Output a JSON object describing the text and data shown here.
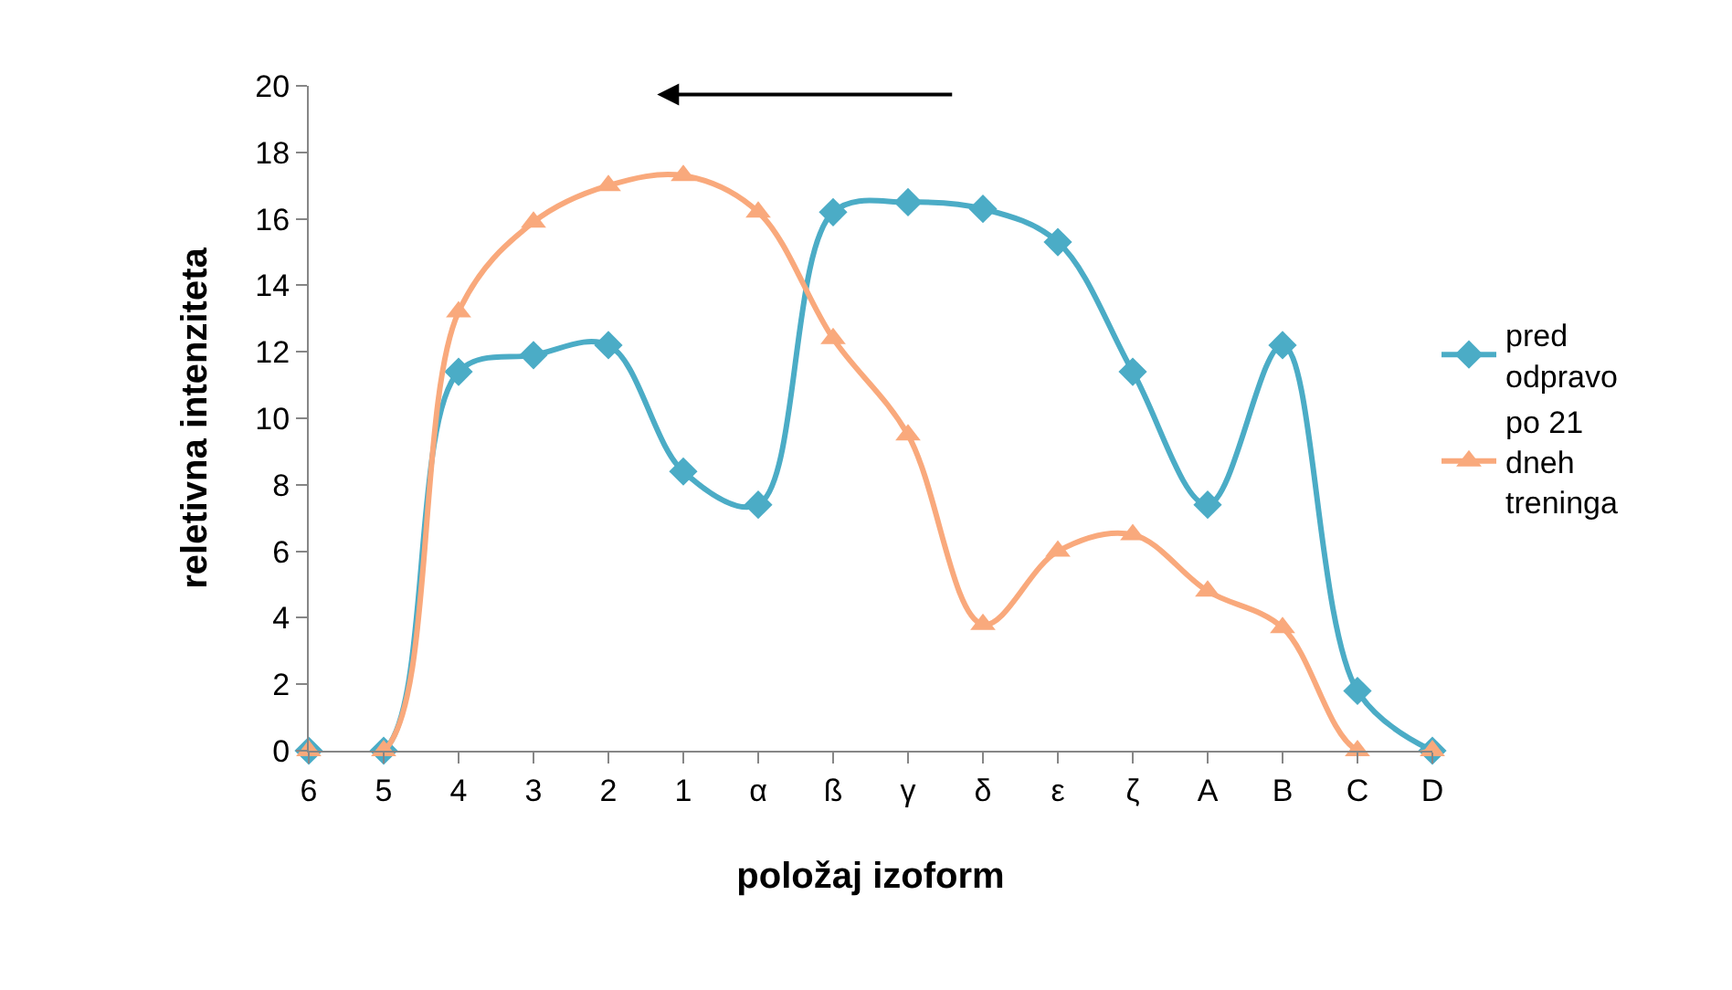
{
  "chart_data": {
    "type": "line",
    "xlabel": "položaj izoform",
    "ylabel": "reletivna intenziteta",
    "categories": [
      "6",
      "5",
      "4",
      "3",
      "2",
      "1",
      "α",
      "ß",
      "γ",
      "δ",
      "ε",
      "ζ",
      "A",
      "B",
      "C",
      "D"
    ],
    "series": [
      {
        "name": "pred odpravo",
        "color": "#4bacc6",
        "marker": "diamond",
        "values": [
          0,
          0,
          11.4,
          11.9,
          12.2,
          8.4,
          7.4,
          16.2,
          16.5,
          16.3,
          15.3,
          11.4,
          7.4,
          12.2,
          1.8,
          0
        ]
      },
      {
        "name": "po 21 dneh treninga",
        "color": "#f9a97c",
        "marker": "triangle",
        "values": [
          0,
          0,
          13.2,
          15.9,
          17.0,
          17.3,
          16.2,
          12.4,
          9.5,
          3.8,
          6.0,
          6.5,
          4.8,
          3.7,
          0,
          0
        ]
      }
    ],
    "ylim": [
      0,
      20
    ],
    "yticks": [
      0,
      2,
      4,
      6,
      8,
      10,
      12,
      14,
      16,
      18,
      20
    ],
    "legend": "right"
  }
}
